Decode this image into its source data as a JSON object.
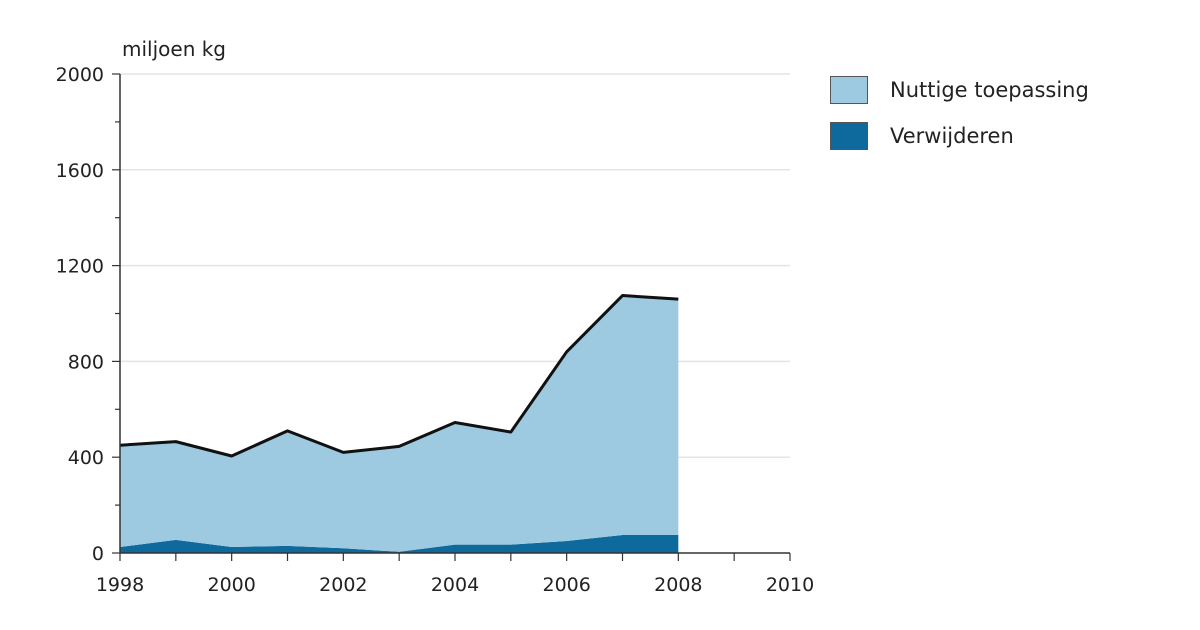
{
  "chart_data": {
    "type": "area",
    "stacked": true,
    "ylabel": "miljoen kg",
    "xlim": [
      1998,
      2010
    ],
    "ylim": [
      0,
      2000
    ],
    "x_ticks": [
      1998,
      2000,
      2002,
      2004,
      2006,
      2008,
      2010
    ],
    "y_ticks": [
      0,
      400,
      800,
      1200,
      1600,
      2000
    ],
    "grid": true,
    "legend_position": "top-right",
    "x": [
      1998,
      1999,
      2000,
      2001,
      2002,
      2003,
      2004,
      2005,
      2006,
      2007,
      2008
    ],
    "series": [
      {
        "name": "Verwijderen",
        "color": "#0e6a9c",
        "values": [
          25,
          55,
          25,
          30,
          20,
          5,
          35,
          35,
          50,
          75,
          75
        ]
      },
      {
        "name": "Nuttige toepassing",
        "color": "#9ecae1",
        "values": [
          425,
          410,
          380,
          480,
          400,
          440,
          510,
          470,
          790,
          1000,
          985
        ]
      }
    ],
    "total_line_color": "#111111"
  }
}
